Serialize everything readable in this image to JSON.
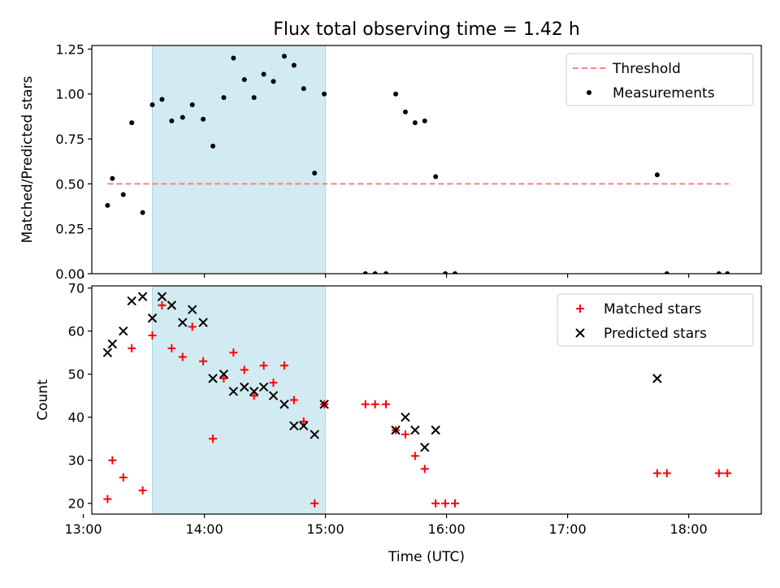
{
  "title": "Flux total observing time = 1.42 h",
  "colors": {
    "threshold": "#ff7f7f",
    "measurements": "#000000",
    "matched": "#ff0000",
    "predicted": "#000000",
    "shade": "#add8e6"
  },
  "chart_data": [
    {
      "type": "scatter",
      "ylabel": "Matched/Predicted stars",
      "xlim": [
        13.07,
        18.6
      ],
      "ylim": [
        0,
        1.27
      ],
      "yticks": [
        "0.00",
        "0.25",
        "0.50",
        "0.75",
        "1.00",
        "1.25"
      ],
      "shaded_span": [
        13.57,
        15.0
      ],
      "legend": {
        "placement": "upper-right",
        "entries": [
          "Threshold",
          "Measurements"
        ]
      },
      "threshold": {
        "name": "Threshold",
        "style": "dashed",
        "x": [
          13.2,
          18.33
        ],
        "y": 0.5
      },
      "series": [
        {
          "name": "Measurements",
          "points": [
            [
              13.2,
              0.38
            ],
            [
              13.24,
              0.53
            ],
            [
              13.33,
              0.44
            ],
            [
              13.4,
              0.84
            ],
            [
              13.49,
              0.34
            ],
            [
              13.57,
              0.94
            ],
            [
              13.65,
              0.97
            ],
            [
              13.73,
              0.85
            ],
            [
              13.82,
              0.87
            ],
            [
              13.9,
              0.94
            ],
            [
              13.99,
              0.86
            ],
            [
              14.07,
              0.71
            ],
            [
              14.16,
              0.98
            ],
            [
              14.24,
              1.2
            ],
            [
              14.33,
              1.08
            ],
            [
              14.41,
              0.98
            ],
            [
              14.49,
              1.11
            ],
            [
              14.57,
              1.07
            ],
            [
              14.66,
              1.21
            ],
            [
              14.74,
              1.16
            ],
            [
              14.82,
              1.03
            ],
            [
              14.91,
              0.56
            ],
            [
              14.99,
              1.0
            ],
            [
              15.33,
              0.0
            ],
            [
              15.41,
              0.0
            ],
            [
              15.5,
              0.0
            ],
            [
              15.58,
              1.0
            ],
            [
              15.66,
              0.9
            ],
            [
              15.74,
              0.84
            ],
            [
              15.82,
              0.85
            ],
            [
              15.91,
              0.54
            ],
            [
              15.99,
              0.0
            ],
            [
              16.07,
              0.0
            ],
            [
              17.74,
              0.55
            ],
            [
              17.82,
              0.0
            ],
            [
              18.25,
              0.0
            ],
            [
              18.32,
              0.0
            ]
          ]
        }
      ]
    },
    {
      "type": "scatter",
      "xlabel": "Time (UTC)",
      "ylabel": "Count",
      "xlim": [
        13.07,
        18.6
      ],
      "ylim": [
        17.5,
        70.5
      ],
      "yticks": [
        "20",
        "30",
        "40",
        "50",
        "60",
        "70"
      ],
      "xticks": [
        "13:00",
        "14:00",
        "15:00",
        "16:00",
        "17:00",
        "18:00"
      ],
      "shaded_span": [
        13.57,
        15.0
      ],
      "legend": {
        "placement": "upper-right",
        "entries": [
          "Matched stars",
          "Predicted stars"
        ]
      },
      "series": [
        {
          "name": "Matched stars",
          "marker": "plus",
          "points": [
            [
              13.2,
              21
            ],
            [
              13.24,
              30
            ],
            [
              13.33,
              26
            ],
            [
              13.4,
              56
            ],
            [
              13.49,
              23
            ],
            [
              13.57,
              59
            ],
            [
              13.65,
              66
            ],
            [
              13.73,
              56
            ],
            [
              13.82,
              54
            ],
            [
              13.9,
              61
            ],
            [
              13.99,
              53
            ],
            [
              14.07,
              35
            ],
            [
              14.16,
              49
            ],
            [
              14.24,
              55
            ],
            [
              14.33,
              51
            ],
            [
              14.41,
              45
            ],
            [
              14.49,
              52
            ],
            [
              14.57,
              48
            ],
            [
              14.66,
              52
            ],
            [
              14.74,
              44
            ],
            [
              14.82,
              39
            ],
            [
              14.91,
              20
            ],
            [
              14.99,
              43
            ],
            [
              15.33,
              43
            ],
            [
              15.41,
              43
            ],
            [
              15.5,
              43
            ],
            [
              15.58,
              37
            ],
            [
              15.66,
              36
            ],
            [
              15.74,
              31
            ],
            [
              15.82,
              28
            ],
            [
              15.91,
              20
            ],
            [
              15.99,
              20
            ],
            [
              16.07,
              20
            ],
            [
              17.74,
              27
            ],
            [
              17.82,
              27
            ],
            [
              18.25,
              27
            ],
            [
              18.32,
              27
            ]
          ]
        },
        {
          "name": "Predicted stars",
          "marker": "x",
          "points": [
            [
              13.2,
              55
            ],
            [
              13.24,
              57
            ],
            [
              13.33,
              60
            ],
            [
              13.4,
              67
            ],
            [
              13.49,
              68
            ],
            [
              13.57,
              63
            ],
            [
              13.65,
              68
            ],
            [
              13.73,
              66
            ],
            [
              13.82,
              62
            ],
            [
              13.9,
              65
            ],
            [
              13.99,
              62
            ],
            [
              14.07,
              49
            ],
            [
              14.16,
              50
            ],
            [
              14.24,
              46
            ],
            [
              14.33,
              47
            ],
            [
              14.41,
              46
            ],
            [
              14.49,
              47
            ],
            [
              14.57,
              45
            ],
            [
              14.66,
              43
            ],
            [
              14.74,
              38
            ],
            [
              14.82,
              38
            ],
            [
              14.91,
              36
            ],
            [
              14.99,
              43
            ],
            [
              15.58,
              37
            ],
            [
              15.66,
              40
            ],
            [
              15.74,
              37
            ],
            [
              15.82,
              33
            ],
            [
              15.91,
              37
            ],
            [
              17.74,
              49
            ]
          ]
        }
      ]
    }
  ]
}
